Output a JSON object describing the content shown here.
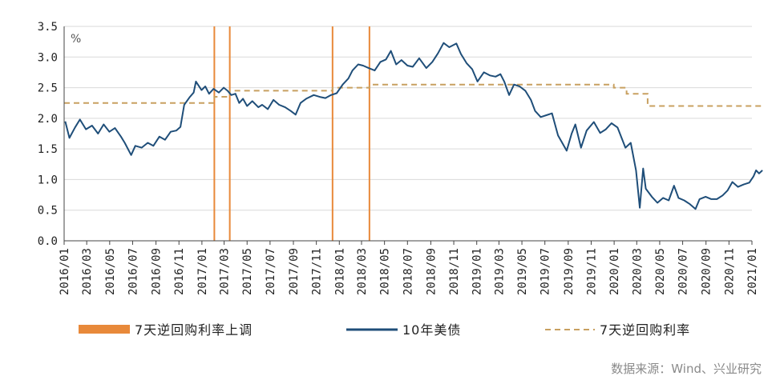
{
  "chart_data": {
    "type": "line",
    "unit": "%",
    "ylim": [
      0.0,
      3.5
    ],
    "y_ticks": [
      "0.0",
      "0.5",
      "1.0",
      "1.5",
      "2.0",
      "2.5",
      "3.0",
      "3.5"
    ],
    "x_range": [
      "2016/01",
      "2021/01"
    ],
    "x_ticks": [
      "2016/01",
      "2016/03",
      "2016/05",
      "2016/07",
      "2016/09",
      "2016/11",
      "2017/01",
      "2017/03",
      "2017/05",
      "2017/07",
      "2017/09",
      "2017/11",
      "2018/01",
      "2018/03",
      "2018/05",
      "2018/07",
      "2018/09",
      "2018/11",
      "2019/01",
      "2019/03",
      "2019/05",
      "2019/07",
      "2019/09",
      "2019/11",
      "2020/01",
      "2020/03",
      "2020/05",
      "2020/07",
      "2020/09",
      "2020/11",
      "2021/01"
    ],
    "grid": "horizontal",
    "legend_placement": "bottom",
    "series": [
      {
        "name": "10年美债",
        "kind": "line",
        "color": "#1f4e79",
        "points": [
          [
            "2016/01/04",
            1.95
          ],
          [
            "2016/01/15",
            1.68
          ],
          [
            "2016/01/30",
            1.85
          ],
          [
            "2016/02/12",
            1.98
          ],
          [
            "2016/02/28",
            1.82
          ],
          [
            "2016/03/15",
            1.88
          ],
          [
            "2016/03/31",
            1.75
          ],
          [
            "2016/04/15",
            1.9
          ],
          [
            "2016/04/30",
            1.78
          ],
          [
            "2016/05/15",
            1.84
          ],
          [
            "2016/05/31",
            1.7
          ],
          [
            "2016/06/10",
            1.6
          ],
          [
            "2016/06/27",
            1.4
          ],
          [
            "2016/07/08",
            1.55
          ],
          [
            "2016/07/25",
            1.52
          ],
          [
            "2016/08/10",
            1.6
          ],
          [
            "2016/08/25",
            1.55
          ],
          [
            "2016/09/10",
            1.7
          ],
          [
            "2016/09/25",
            1.65
          ],
          [
            "2016/10/10",
            1.78
          ],
          [
            "2016/10/25",
            1.8
          ],
          [
            "2016/11/05",
            1.86
          ],
          [
            "2016/11/15",
            2.22
          ],
          [
            "2016/11/30",
            2.35
          ],
          [
            "2016/12/10",
            2.42
          ],
          [
            "2016/12/16",
            2.6
          ],
          [
            "2016/12/31",
            2.46
          ],
          [
            "2017/01/10",
            2.52
          ],
          [
            "2017/01/20",
            2.4
          ],
          [
            "2017/02/01",
            2.48
          ],
          [
            "2017/02/15",
            2.42
          ],
          [
            "2017/02/28",
            2.5
          ],
          [
            "2017/03/10",
            2.45
          ],
          [
            "2017/03/20",
            2.38
          ],
          [
            "2017/03/31",
            2.4
          ],
          [
            "2017/04/10",
            2.25
          ],
          [
            "2017/04/20",
            2.32
          ],
          [
            "2017/05/01",
            2.2
          ],
          [
            "2017/05/15",
            2.28
          ],
          [
            "2017/05/31",
            2.18
          ],
          [
            "2017/06/10",
            2.22
          ],
          [
            "2017/06/25",
            2.15
          ],
          [
            "2017/07/10",
            2.3
          ],
          [
            "2017/07/25",
            2.22
          ],
          [
            "2017/08/10",
            2.18
          ],
          [
            "2017/08/25",
            2.12
          ],
          [
            "2017/09/07",
            2.06
          ],
          [
            "2017/09/20",
            2.25
          ],
          [
            "2017/10/05",
            2.32
          ],
          [
            "2017/10/25",
            2.38
          ],
          [
            "2017/11/10",
            2.35
          ],
          [
            "2017/11/25",
            2.33
          ],
          [
            "2017/12/10",
            2.38
          ],
          [
            "2017/12/25",
            2.41
          ],
          [
            "2018/01/10",
            2.55
          ],
          [
            "2018/01/25",
            2.65
          ],
          [
            "2018/02/05",
            2.78
          ],
          [
            "2018/02/20",
            2.88
          ],
          [
            "2018/03/05",
            2.86
          ],
          [
            "2018/03/20",
            2.82
          ],
          [
            "2018/04/05",
            2.78
          ],
          [
            "2018/04/20",
            2.92
          ],
          [
            "2018/05/05",
            2.96
          ],
          [
            "2018/05/18",
            3.1
          ],
          [
            "2018/06/01",
            2.88
          ],
          [
            "2018/06/15",
            2.95
          ],
          [
            "2018/07/01",
            2.86
          ],
          [
            "2018/07/15",
            2.84
          ],
          [
            "2018/08/01",
            2.98
          ],
          [
            "2018/08/20",
            2.82
          ],
          [
            "2018/09/05",
            2.92
          ],
          [
            "2018/09/20",
            3.06
          ],
          [
            "2018/10/05",
            3.23
          ],
          [
            "2018/10/20",
            3.16
          ],
          [
            "2018/11/08",
            3.22
          ],
          [
            "2018/11/20",
            3.05
          ],
          [
            "2018/12/05",
            2.9
          ],
          [
            "2018/12/20",
            2.8
          ],
          [
            "2019/01/03",
            2.6
          ],
          [
            "2019/01/20",
            2.75
          ],
          [
            "2019/02/05",
            2.7
          ],
          [
            "2019/02/20",
            2.68
          ],
          [
            "2019/03/05",
            2.72
          ],
          [
            "2019/03/15",
            2.6
          ],
          [
            "2019/03/28",
            2.38
          ],
          [
            "2019/04/10",
            2.55
          ],
          [
            "2019/04/25",
            2.52
          ],
          [
            "2019/05/10",
            2.45
          ],
          [
            "2019/05/25",
            2.3
          ],
          [
            "2019/06/05",
            2.12
          ],
          [
            "2019/06/20",
            2.02
          ],
          [
            "2019/07/05",
            2.05
          ],
          [
            "2019/07/20",
            2.08
          ],
          [
            "2019/08/05",
            1.72
          ],
          [
            "2019/08/28",
            1.47
          ],
          [
            "2019/09/10",
            1.75
          ],
          [
            "2019/09/20",
            1.9
          ],
          [
            "2019/10/05",
            1.52
          ],
          [
            "2019/10/20",
            1.8
          ],
          [
            "2019/11/08",
            1.94
          ],
          [
            "2019/11/25",
            1.76
          ],
          [
            "2019/12/10",
            1.82
          ],
          [
            "2019/12/25",
            1.92
          ],
          [
            "2020/01/10",
            1.85
          ],
          [
            "2020/01/31",
            1.52
          ],
          [
            "2020/02/14",
            1.6
          ],
          [
            "2020/02/28",
            1.15
          ],
          [
            "2020/03/09",
            0.54
          ],
          [
            "2020/03/18",
            1.18
          ],
          [
            "2020/03/25",
            0.85
          ],
          [
            "2020/04/10",
            0.72
          ],
          [
            "2020/04/25",
            0.62
          ],
          [
            "2020/05/10",
            0.7
          ],
          [
            "2020/05/25",
            0.66
          ],
          [
            "2020/06/08",
            0.9
          ],
          [
            "2020/06/20",
            0.7
          ],
          [
            "2020/07/05",
            0.66
          ],
          [
            "2020/07/20",
            0.6
          ],
          [
            "2020/08/04",
            0.52
          ],
          [
            "2020/08/15",
            0.68
          ],
          [
            "2020/08/31",
            0.72
          ],
          [
            "2020/09/15",
            0.68
          ],
          [
            "2020/09/30",
            0.68
          ],
          [
            "2020/10/15",
            0.74
          ],
          [
            "2020/10/28",
            0.82
          ],
          [
            "2020/11/10",
            0.96
          ],
          [
            "2020/11/25",
            0.88
          ],
          [
            "2020/12/10",
            0.92
          ],
          [
            "2020/12/25",
            0.95
          ],
          [
            "2021/01/05",
            1.05
          ],
          [
            "2021/01/12",
            1.15
          ],
          [
            "2021/01/20",
            1.1
          ],
          [
            "2021/01/29",
            1.15
          ]
        ]
      },
      {
        "name": "7天逆回购利率",
        "kind": "step-dashed",
        "color": "#c8a060",
        "points": [
          [
            "2016/01/01",
            2.25
          ],
          [
            "2017/02/03",
            2.35
          ],
          [
            "2017/03/16",
            2.45
          ],
          [
            "2017/12/14",
            2.5
          ],
          [
            "2018/03/22",
            2.55
          ],
          [
            "2019/12/31",
            2.5
          ],
          [
            "2020/02/03",
            2.4
          ],
          [
            "2020/03/30",
            2.2
          ],
          [
            "2021/01/31",
            2.2
          ]
        ]
      },
      {
        "name": "7天逆回购利率上调",
        "kind": "vertical-markers",
        "color": "#e8893a",
        "dates": [
          "2017/02/03",
          "2017/03/16",
          "2017/12/14",
          "2018/03/22"
        ]
      }
    ]
  },
  "legend": {
    "items": [
      {
        "label": "7天逆回购利率上调",
        "swatch": "bar",
        "color": "#e8893a"
      },
      {
        "label": "10年美债",
        "swatch": "line",
        "color": "#1f4e79"
      },
      {
        "label": "7天逆回购利率",
        "swatch": "dashed",
        "color": "#c8a060"
      }
    ]
  },
  "source": "数据来源：Wind、兴业研究"
}
